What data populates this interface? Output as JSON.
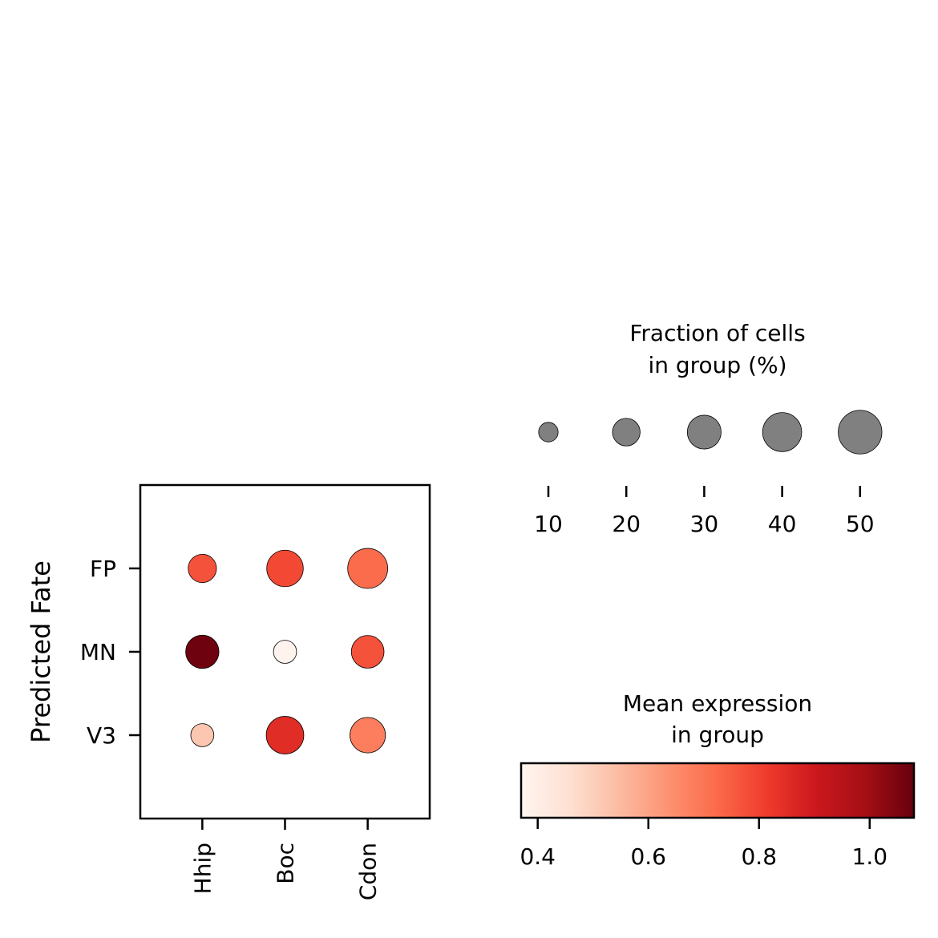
{
  "chart_data": {
    "type": "scatter",
    "subtype": "dotplot",
    "ylabel": "Predicted Fate",
    "categories_x": [
      "Hhip",
      "Boc",
      "Cdon"
    ],
    "categories_y": [
      "FP",
      "MN",
      "V3"
    ],
    "points": [
      {
        "group": "FP",
        "gene": "Hhip",
        "fraction": 21,
        "mean_expression": 0.77
      },
      {
        "group": "FP",
        "gene": "Boc",
        "fraction": 35,
        "mean_expression": 0.79
      },
      {
        "group": "FP",
        "gene": "Cdon",
        "fraction": 42,
        "mean_expression": 0.72
      },
      {
        "group": "MN",
        "gene": "Hhip",
        "fraction": 29,
        "mean_expression": 1.07
      },
      {
        "group": "MN",
        "gene": "Boc",
        "fraction": 14,
        "mean_expression": 0.38
      },
      {
        "group": "MN",
        "gene": "Cdon",
        "fraction": 28,
        "mean_expression": 0.77
      },
      {
        "group": "V3",
        "gene": "Hhip",
        "fraction": 14,
        "mean_expression": 0.52
      },
      {
        "group": "V3",
        "gene": "Boc",
        "fraction": 37,
        "mean_expression": 0.85
      },
      {
        "group": "V3",
        "gene": "Cdon",
        "fraction": 33,
        "mean_expression": 0.68
      }
    ],
    "size_legend": {
      "title_line1": "Fraction of cells",
      "title_line2": "in group (%)",
      "values": [
        10,
        20,
        30,
        40,
        50
      ],
      "labels": [
        "10",
        "20",
        "30",
        "40",
        "50"
      ],
      "marker_color": "#808080"
    },
    "color_legend": {
      "title_line1": "Mean expression",
      "title_line2": "in group",
      "colormap": "Reds",
      "vmin": 0.37,
      "vmax": 1.08,
      "ticks": [
        0.4,
        0.6,
        0.8,
        1.0
      ],
      "tick_labels": [
        "0.4",
        "0.6",
        "0.8",
        "1.0"
      ]
    }
  }
}
